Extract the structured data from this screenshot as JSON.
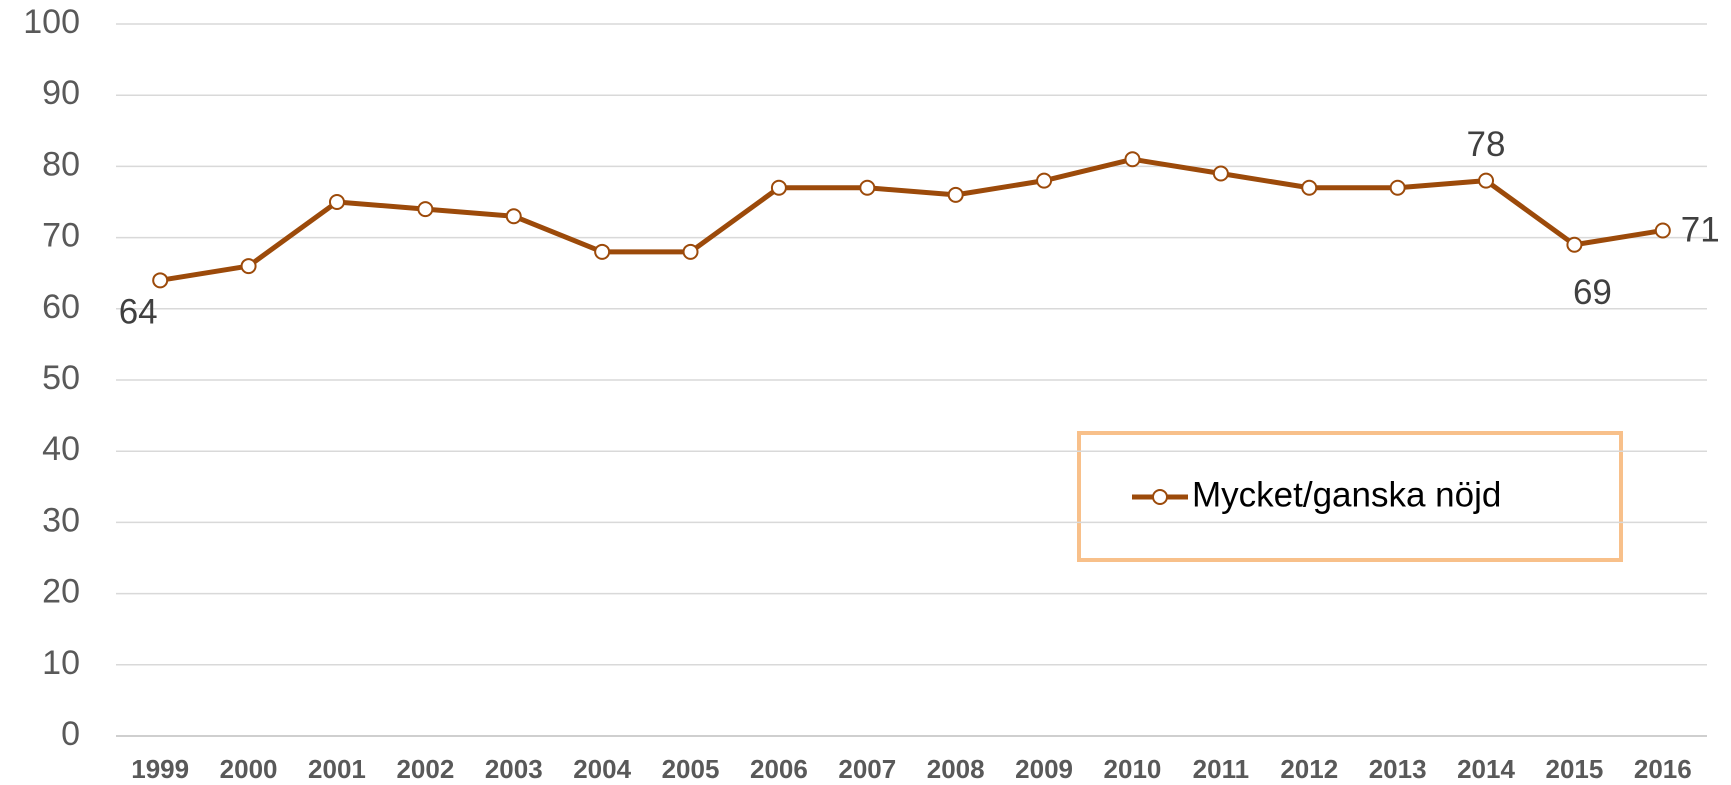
{
  "chart_data": {
    "type": "line",
    "categories": [
      "1999",
      "2000",
      "2001",
      "2002",
      "2003",
      "2004",
      "2005",
      "2006",
      "2007",
      "2008",
      "2009",
      "2010",
      "2011",
      "2012",
      "2013",
      "2014",
      "2015",
      "2016"
    ],
    "series": [
      {
        "name": "Mycket/ganska nöjd",
        "color": "#9c4a0a",
        "values": [
          64,
          66,
          75,
          74,
          73,
          68,
          68,
          77,
          77,
          76,
          78,
          81,
          79,
          77,
          77,
          78,
          69,
          71
        ],
        "value_labels": [
          "64",
          null,
          null,
          null,
          null,
          null,
          null,
          null,
          null,
          null,
          null,
          null,
          null,
          null,
          null,
          "78",
          "69",
          "71"
        ]
      }
    ],
    "ylim": [
      0,
      100
    ],
    "yticks": [
      0,
      10,
      20,
      30,
      40,
      50,
      60,
      70,
      80,
      90,
      100
    ],
    "grid": true,
    "legend": "right"
  }
}
